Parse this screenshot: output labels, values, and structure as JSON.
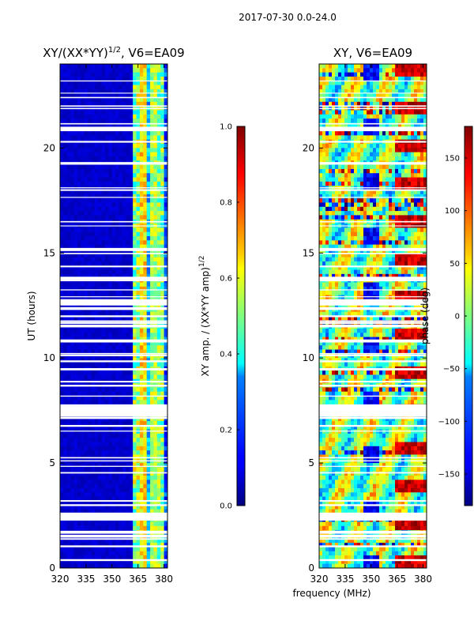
{
  "figure": {
    "suptitle": "2017-07-30 0.0-24.0",
    "xlabel_shared": "frequency (MHz)"
  },
  "chart_data": [
    {
      "type": "heatmap",
      "title": "XY/(XX*YY)",
      "title_exponent": "1/2",
      "title_suffix": ", V6=EA09",
      "ylabel": "UT (hours)",
      "xlim": [
        320,
        382
      ],
      "ylim": [
        0,
        24
      ],
      "xticks": [
        320,
        335,
        350,
        365,
        380
      ],
      "yticks": [
        0,
        5,
        10,
        15,
        20
      ],
      "colorbar": {
        "label": "XY amp. / (XX*YY amp)",
        "label_exponent": "1/2",
        "range": [
          0.0,
          1.0
        ],
        "ticks": [
          "0.0",
          "0.2",
          "0.4",
          "0.6",
          "0.8",
          "1.0"
        ],
        "colormap": "jet"
      },
      "masked_bands_hours": [
        [
          7.2,
          7.7
        ],
        [
          2.3,
          2.6
        ],
        [
          12.5,
          12.8
        ],
        [
          20.8,
          21.0
        ]
      ]
    },
    {
      "type": "heatmap",
      "title": "XY, V6=EA09",
      "xlim": [
        320,
        382
      ],
      "ylim": [
        0,
        24
      ],
      "xticks": [
        320,
        335,
        350,
        365,
        380
      ],
      "yticks": [
        0,
        5,
        10,
        15,
        20
      ],
      "colorbar": {
        "label": "phase (deg)",
        "range": [
          -180,
          180
        ],
        "ticks": [
          "−150",
          "−100",
          "−50",
          "0",
          "50",
          "100",
          "150"
        ],
        "colormap": "jet"
      },
      "masked_bands_hours": [
        [
          7.2,
          7.7
        ],
        [
          2.3,
          2.6
        ],
        [
          12.5,
          12.8
        ],
        [
          20.8,
          21.0
        ]
      ]
    }
  ]
}
